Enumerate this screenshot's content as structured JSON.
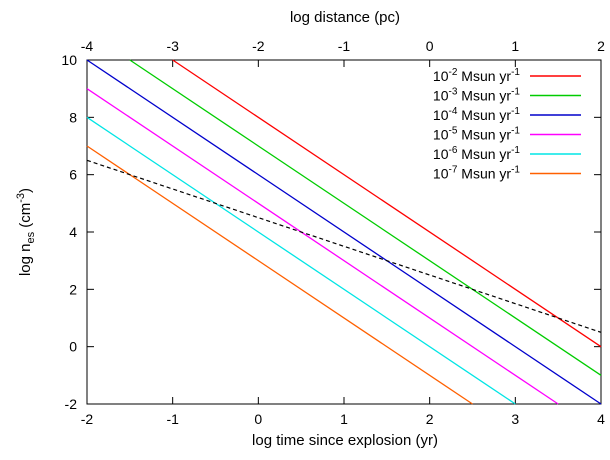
{
  "chart_data": {
    "type": "line",
    "title": "",
    "xlabel": "log time since explosion (yr)",
    "ylabel_main": "log n",
    "ylabel_sub": "es",
    "ylabel_unit_open": " (cm",
    "ylabel_unit_sup": "-3",
    "ylabel_unit_close": ")",
    "x2label": "log distance (pc)",
    "xlim": [
      -2,
      4
    ],
    "ylim": [
      -2,
      10
    ],
    "x2lim": [
      -4,
      2
    ],
    "xticks": [
      "-2",
      "-1",
      "0",
      "1",
      "2",
      "3",
      "4"
    ],
    "x2ticks": [
      "-4",
      "-3",
      "-2",
      "-1",
      "0",
      "1",
      "2"
    ],
    "yticks": [
      "-2",
      "0",
      "2",
      "4",
      "6",
      "8",
      "10"
    ],
    "grid": false,
    "legend_position": "top-right",
    "legend_unit": " Msun yr",
    "legend_sup": "-1",
    "series": [
      {
        "name": "10",
        "exp": "-2",
        "color": "#ff0000",
        "x": [
          -1.0,
          4.0
        ],
        "y": [
          10,
          0
        ]
      },
      {
        "name": "10",
        "exp": "-3",
        "color": "#00cc00",
        "x": [
          -1.5,
          4.0
        ],
        "y": [
          10,
          -1
        ]
      },
      {
        "name": "10",
        "exp": "-4",
        "color": "#0000cc",
        "x": [
          -2.0,
          4.0
        ],
        "y": [
          10,
          -2
        ]
      },
      {
        "name": "10",
        "exp": "-5",
        "color": "#ff00ff",
        "x": [
          -2.0,
          3.5
        ],
        "y": [
          9,
          -2
        ]
      },
      {
        "name": "10",
        "exp": "-6",
        "color": "#00e5e5",
        "x": [
          -2.0,
          3.0
        ],
        "y": [
          8,
          -2
        ]
      },
      {
        "name": "10",
        "exp": "-7",
        "color": "#ff6000",
        "x": [
          -2.0,
          2.5
        ],
        "y": [
          7,
          -2
        ]
      }
    ],
    "reference_line": {
      "color": "#000000",
      "dashed": true,
      "x": [
        -2.0,
        4.0
      ],
      "y": [
        6.5,
        0.5
      ]
    }
  }
}
